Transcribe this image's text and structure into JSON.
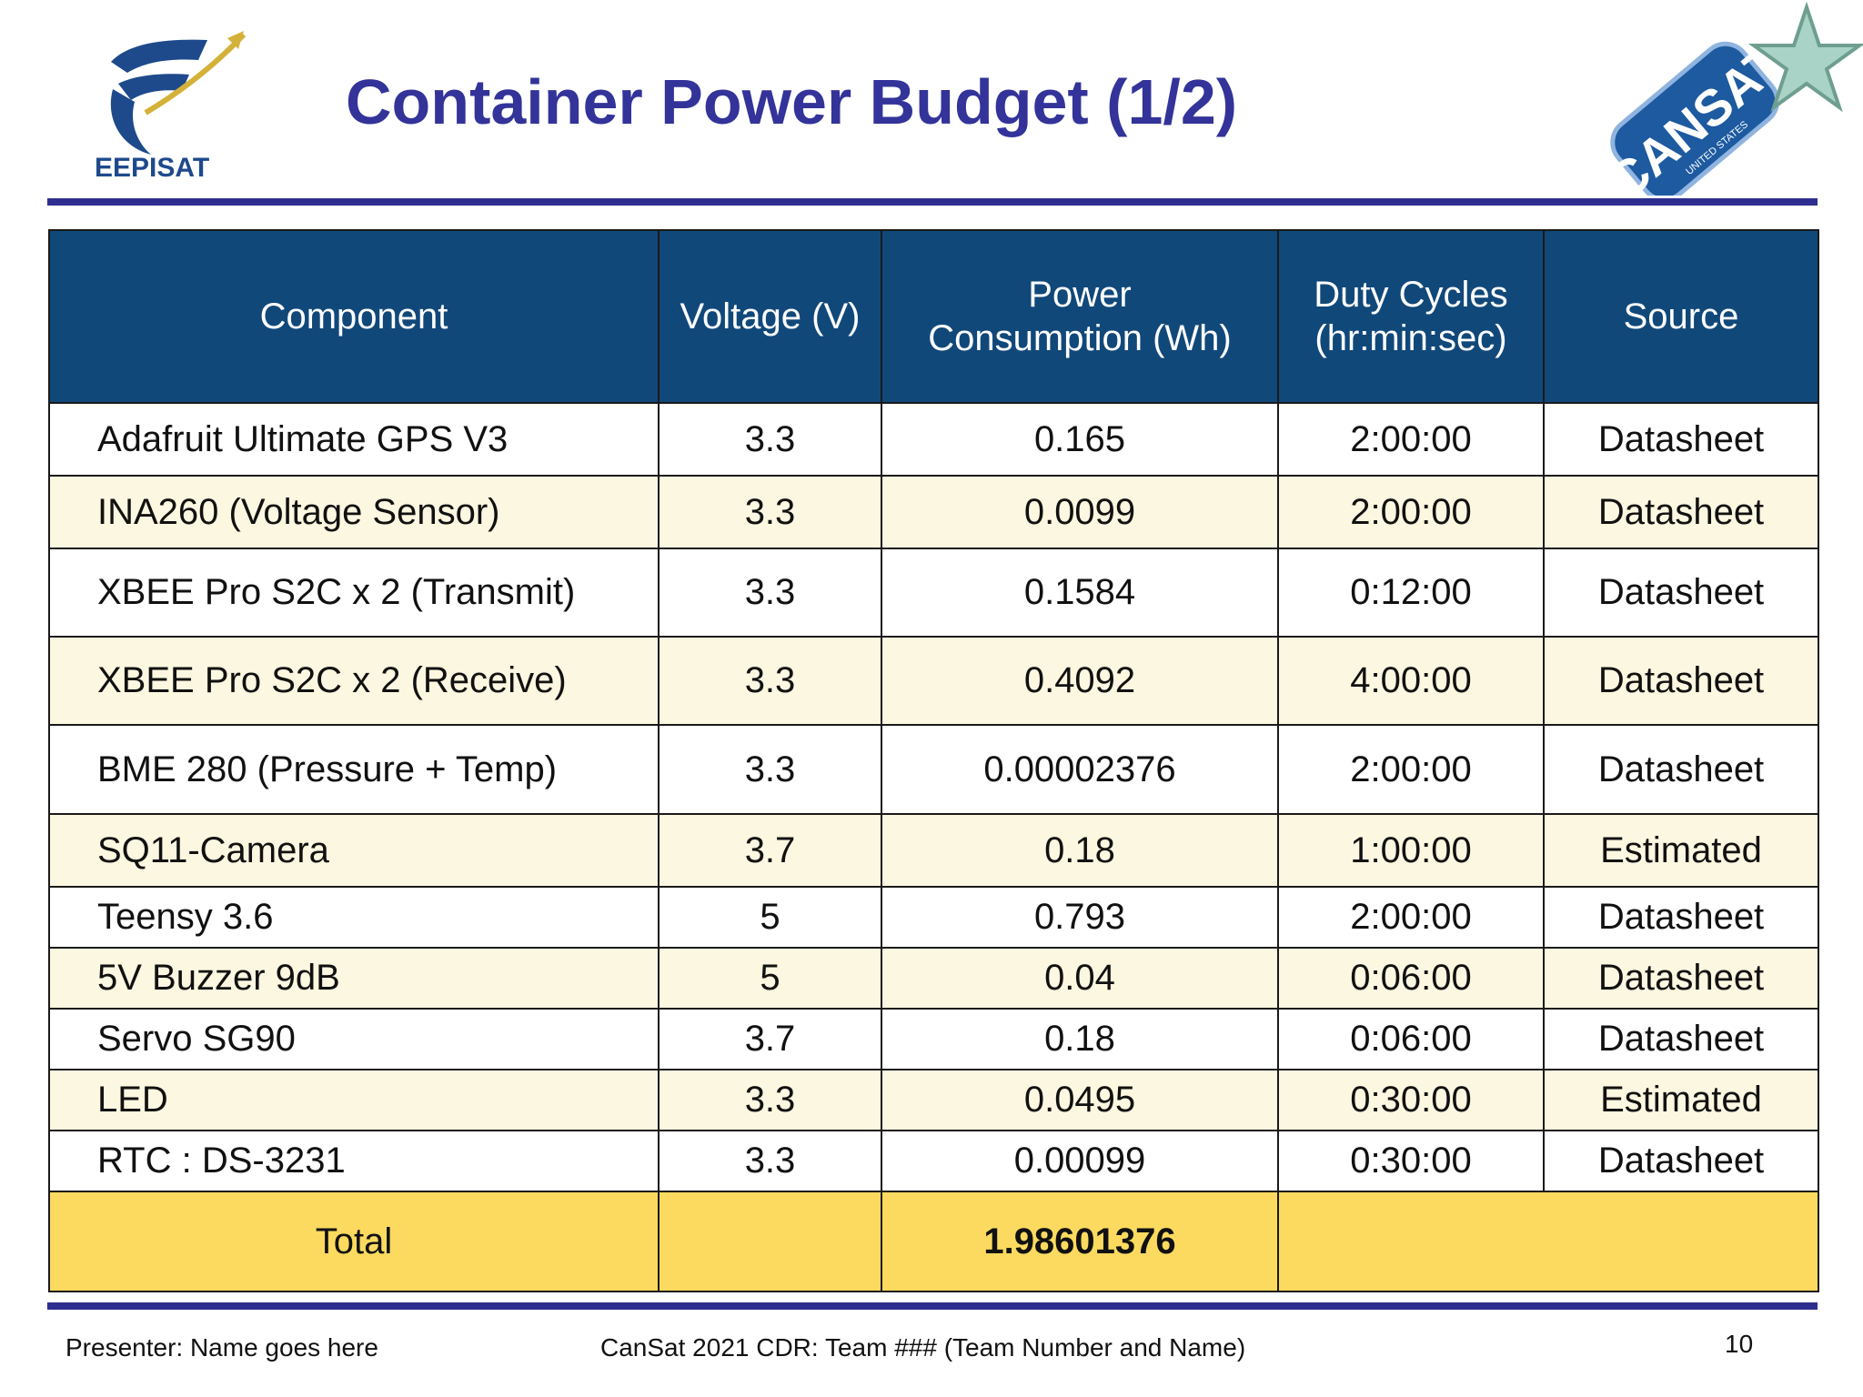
{
  "header": {
    "title": "Container Power Budget (1/2)",
    "logo_left_text": "EEPISAT",
    "logo_right_text": "CANSAT",
    "logo_right_subtext": "UNITED STATES"
  },
  "colors": {
    "title": "#33339a",
    "rule": "#2e2e90",
    "table_header_bg": "#11487a",
    "row_alt_bg": "#fcf7e0",
    "total_bg": "#fbda5f"
  },
  "table": {
    "headers": [
      "Component",
      "Voltage (V)",
      "Power Consumption (Wh)",
      "Duty Cycles (hr:min:sec)",
      "Source"
    ],
    "header_lines": {
      "power": [
        "Power",
        "Consumption (Wh)"
      ],
      "duty": [
        "Duty Cycles",
        "(hr:min:sec)"
      ]
    },
    "rows": [
      {
        "component": "Adafruit Ultimate GPS V3",
        "voltage": "3.3",
        "power": "0.165",
        "duty": "2:00:00",
        "source": "Datasheet"
      },
      {
        "component": "INA260 (Voltage Sensor)",
        "voltage": "3.3",
        "power": "0.0099",
        "duty": "2:00:00",
        "source": "Datasheet"
      },
      {
        "component": "XBEE Pro S2C x 2 (Transmit)",
        "voltage": "3.3",
        "power": "0.1584",
        "duty": "0:12:00",
        "source": "Datasheet"
      },
      {
        "component": "XBEE Pro S2C x 2 (Receive)",
        "voltage": "3.3",
        "power": "0.4092",
        "duty": "4:00:00",
        "source": "Datasheet"
      },
      {
        "component": "BME 280 (Pressure + Temp)",
        "voltage": "3.3",
        "power": "0.00002376",
        "duty": "2:00:00",
        "source": "Datasheet"
      },
      {
        "component": "SQ11-Camera",
        "voltage": "3.7",
        "power": "0.18",
        "duty": "1:00:00",
        "source": "Estimated"
      },
      {
        "component": "Teensy 3.6",
        "voltage": "5",
        "power": "0.793",
        "duty": "2:00:00",
        "source": "Datasheet"
      },
      {
        "component": "5V Buzzer 9dB",
        "voltage": "5",
        "power": "0.04",
        "duty": "0:06:00",
        "source": "Datasheet"
      },
      {
        "component": "Servo SG90",
        "voltage": "3.7",
        "power": "0.18",
        "duty": "0:06:00",
        "source": "Datasheet"
      },
      {
        "component": "LED",
        "voltage": "3.3",
        "power": "0.0495",
        "duty": "0:30:00",
        "source": "Estimated"
      },
      {
        "component": "RTC : DS-3231",
        "voltage": "3.3",
        "power": "0.00099",
        "duty": "0:30:00",
        "source": "Datasheet"
      }
    ],
    "total": {
      "label": "Total",
      "power": "1.98601376"
    }
  },
  "footer": {
    "presenter": "Presenter:  Name goes here",
    "center": "CanSat 2021 CDR:  Team ### (Team Number and Name)",
    "page_number": "10"
  }
}
